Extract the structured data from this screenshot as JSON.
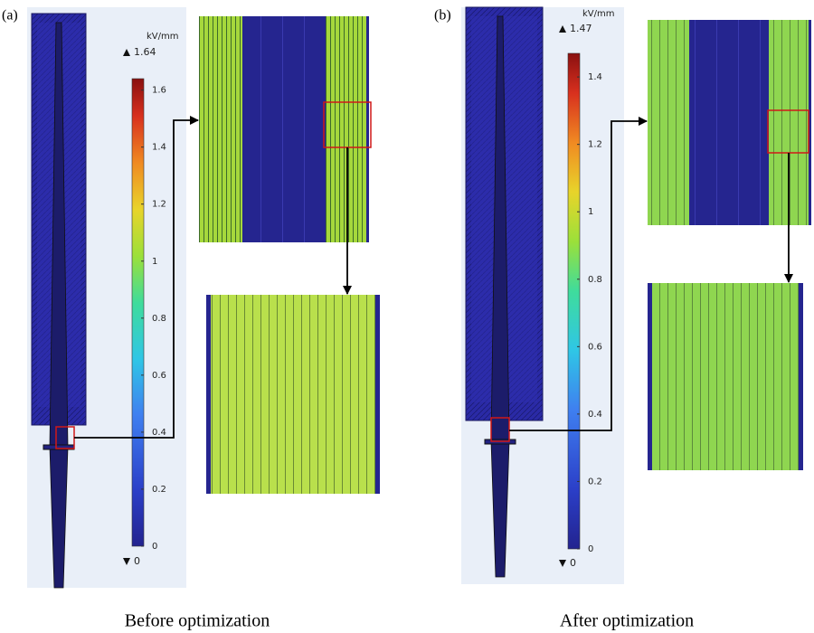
{
  "panels": [
    {
      "label": "(a)",
      "caption": "Before optimization",
      "colorbar": {
        "unit": "kV/mm",
        "max": 1.64,
        "min": 0,
        "ticks": [
          0,
          0.2,
          0.4,
          0.6,
          0.8,
          1,
          1.2,
          1.4,
          1.6
        ]
      }
    },
    {
      "label": "(b)",
      "caption": "After optimization",
      "colorbar": {
        "unit": "kV/mm",
        "max": 1.47,
        "min": 0,
        "ticks": [
          0,
          0.2,
          0.4,
          0.6,
          0.8,
          1,
          1.2,
          1.4
        ]
      }
    }
  ]
}
